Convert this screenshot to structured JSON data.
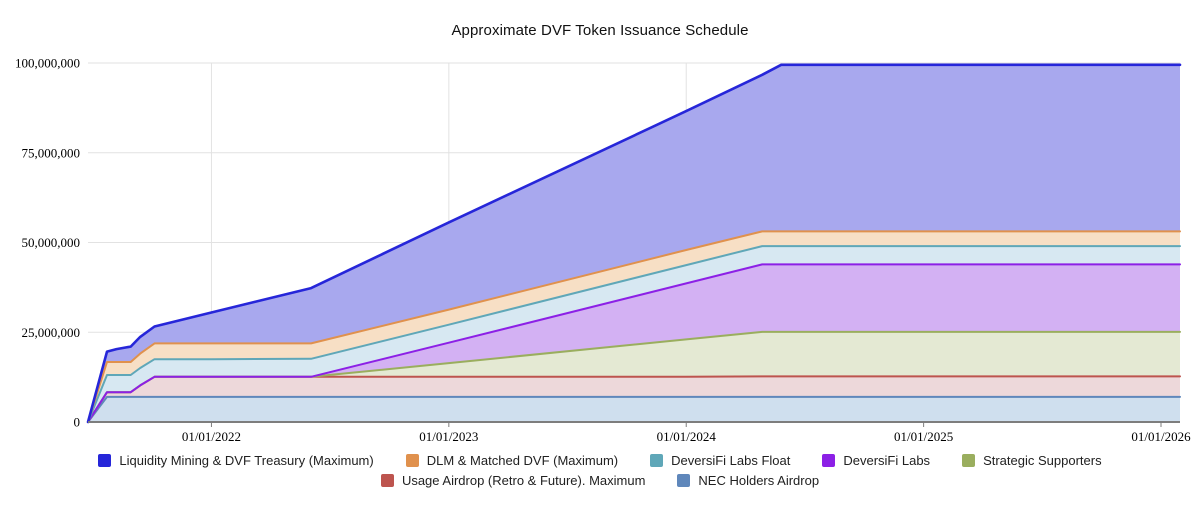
{
  "title": "Approximate DVF Token Issuance Schedule",
  "chart_data": {
    "type": "area",
    "stacked": true,
    "title": "Approximate DVF Token Issuance Schedule",
    "xlabel": "",
    "ylabel": "",
    "grid": true,
    "legend_position": "bottom",
    "unit": "millions of DVF tokens",
    "x_range_decimal_years": [
      2021.48,
      2026.08
    ],
    "ylim_millions": [
      0,
      100
    ],
    "y_ticks": [
      {
        "value_millions": 0,
        "label": "0"
      },
      {
        "value_millions": 25,
        "label": "25,000,000"
      },
      {
        "value_millions": 50,
        "label": "50,000,000"
      },
      {
        "value_millions": 75,
        "label": "75,000,000"
      },
      {
        "value_millions": 100,
        "label": "100,000,000"
      }
    ],
    "x_ticks": [
      {
        "year": 2022,
        "label": "01/01/2022"
      },
      {
        "year": 2023,
        "label": "01/01/2023"
      },
      {
        "year": 2024,
        "label": "01/01/2024"
      },
      {
        "year": 2025,
        "label": "01/01/2025"
      },
      {
        "year": 2026,
        "label": "01/01/2026"
      }
    ],
    "dates_decimal_years": [
      2021.48,
      2021.56,
      2021.6,
      2021.66,
      2021.7,
      2021.76,
      2022.0,
      2022.42,
      2023.0,
      2024.0,
      2024.32,
      2024.4,
      2026.08
    ],
    "series": [
      {
        "key": "nec",
        "label": "NEC Holders Airdrop",
        "line_color": "#5f87bb",
        "fill_color": "#cfdfee",
        "values_millions": [
          0,
          7.0,
          7.0,
          7.0,
          7.0,
          7.0,
          7.0,
          7.0,
          7.0,
          7.0,
          7.0,
          7.0,
          7.0
        ]
      },
      {
        "key": "usage",
        "label": "Usage Airdrop (Retro & Future). Maximum",
        "line_color": "#bd544e",
        "fill_color": "#edd8da",
        "values_millions": [
          0,
          1.3,
          1.3,
          1.3,
          3.2,
          5.6,
          5.6,
          5.6,
          5.6,
          5.6,
          5.7,
          5.7,
          5.7
        ]
      },
      {
        "key": "strategic",
        "label": "Strategic Supporters",
        "line_color": "#9aae5e",
        "fill_color": "#e4e9d3",
        "values_millions": [
          0,
          0,
          0,
          0,
          0,
          0,
          0,
          0,
          3.8,
          10.4,
          12.4,
          12.4,
          12.4
        ]
      },
      {
        "key": "labs",
        "label": "DeversiFi Labs",
        "line_color": "#8c20e6",
        "fill_color": "#d3b1f3",
        "values_millions": [
          0,
          0,
          0,
          0,
          0,
          0,
          0,
          0,
          5.7,
          15.6,
          18.8,
          18.8,
          18.8
        ]
      },
      {
        "key": "float",
        "label": "DeversiFi Labs Float",
        "line_color": "#5fa7b8",
        "fill_color": "#d7e8f2",
        "values_millions": [
          0,
          4.8,
          4.8,
          4.8,
          4.85,
          4.9,
          4.9,
          5.0,
          5.0,
          5.1,
          5.1,
          5.1,
          5.1
        ]
      },
      {
        "key": "dlm",
        "label": "DLM & Matched DVF (Maximum)",
        "line_color": "#e0914d",
        "fill_color": "#f7dfc5",
        "values_millions": [
          0,
          3.6,
          3.6,
          3.6,
          4.0,
          4.4,
          4.4,
          4.3,
          4.2,
          4.2,
          4.1,
          4.1,
          4.1
        ]
      },
      {
        "key": "lm_treasury",
        "label": "Liquidity Mining & DVF Treasury (Maximum)",
        "line_color": "#2626d9",
        "fill_color": "#a8a8ee",
        "values_millions": [
          0,
          2.9,
          3.6,
          4.3,
          4.65,
          4.7,
          8.6,
          15.4,
          24.3,
          38.7,
          43.6,
          46.4,
          46.4
        ]
      }
    ],
    "legend_rows": [
      [
        "lm_treasury",
        "dlm",
        "float",
        "labs",
        "strategic"
      ],
      [
        "usage",
        "nec"
      ]
    ],
    "colors": {
      "gridline": "#e2e2e2",
      "axis_line": "#7d7d7d",
      "background": "#ffffff"
    }
  }
}
